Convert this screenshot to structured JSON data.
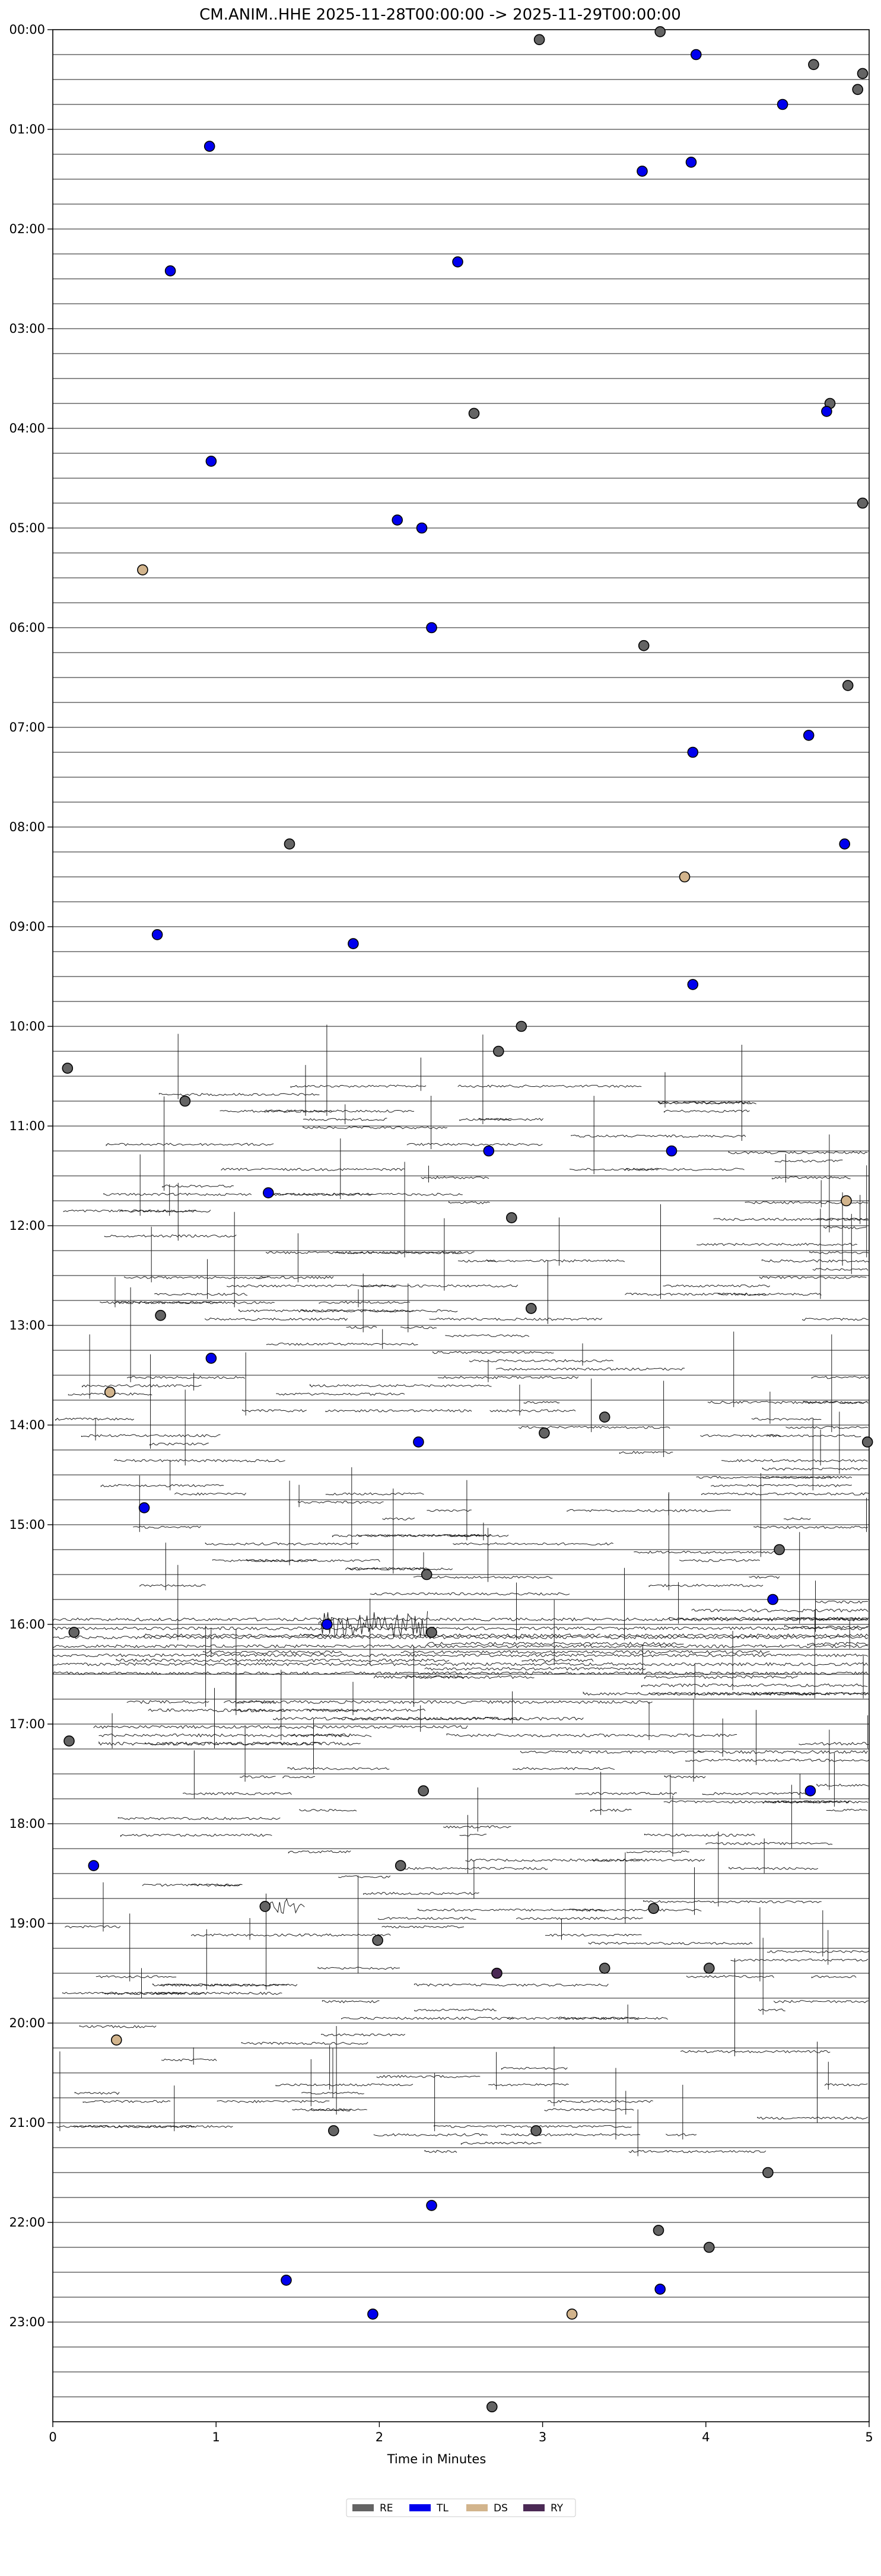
{
  "chart_data": {
    "type": "scatter",
    "title": "CM.ANIM..HHE  2025-11-28T00:00:00 -> 2025-11-29T00:00:00",
    "xlabel": "Time in Minutes",
    "ylabel": "",
    "xlim": [
      0,
      5
    ],
    "ylim_hours": [
      0,
      24
    ],
    "y_axis_inverted": true,
    "grid": false,
    "x_ticks": [
      "0",
      "1",
      "2",
      "3",
      "4",
      "5"
    ],
    "y_ticks": [
      "00:00",
      "01:00",
      "02:00",
      "03:00",
      "04:00",
      "05:00",
      "06:00",
      "07:00",
      "08:00",
      "09:00",
      "10:00",
      "11:00",
      "12:00",
      "13:00",
      "14:00",
      "15:00",
      "16:00",
      "17:00",
      "18:00",
      "19:00",
      "20:00",
      "21:00",
      "22:00",
      "23:00"
    ],
    "legend_position": "bottom-center",
    "legend": [
      {
        "label": "RE",
        "color": "#646464"
      },
      {
        "label": "TL",
        "color": "#0000ee"
      },
      {
        "label": "DS",
        "color": "#d2b48c"
      },
      {
        "label": "RY",
        "color": "#4b2a55"
      }
    ],
    "series": [
      {
        "name": "RE",
        "color": "#646464",
        "points": [
          [
            2.98,
            0.1
          ],
          [
            3.72,
            0.02
          ],
          [
            4.66,
            0.35
          ],
          [
            4.96,
            0.44
          ],
          [
            4.93,
            0.6
          ],
          [
            2.58,
            3.85
          ],
          [
            4.76,
            3.75
          ],
          [
            4.96,
            4.75
          ],
          [
            3.62,
            6.18
          ],
          [
            4.87,
            6.58
          ],
          [
            1.45,
            8.17
          ],
          [
            2.87,
            10.0
          ],
          [
            2.73,
            10.25
          ],
          [
            0.09,
            10.42
          ],
          [
            0.81,
            10.75
          ],
          [
            2.81,
            11.92
          ],
          [
            0.66,
            12.9
          ],
          [
            2.93,
            12.83
          ],
          [
            3.01,
            14.08
          ],
          [
            3.38,
            13.92
          ],
          [
            4.99,
            14.17
          ],
          [
            4.45,
            15.25
          ],
          [
            2.29,
            15.5
          ],
          [
            0.13,
            16.08
          ],
          [
            2.32,
            16.08
          ],
          [
            0.1,
            17.17
          ],
          [
            2.27,
            17.67
          ],
          [
            2.13,
            18.42
          ],
          [
            1.3,
            18.83
          ],
          [
            3.68,
            18.85
          ],
          [
            1.99,
            19.17
          ],
          [
            3.38,
            19.45
          ],
          [
            4.02,
            19.45
          ],
          [
            1.72,
            21.08
          ],
          [
            2.96,
            21.08
          ],
          [
            4.38,
            21.5
          ],
          [
            3.71,
            22.08
          ],
          [
            4.02,
            22.25
          ],
          [
            2.69,
            23.85
          ]
        ]
      },
      {
        "name": "TL",
        "color": "#0000ee",
        "points": [
          [
            3.94,
            0.25
          ],
          [
            4.47,
            0.75
          ],
          [
            0.96,
            1.17
          ],
          [
            3.91,
            1.33
          ],
          [
            3.61,
            1.42
          ],
          [
            0.72,
            2.42
          ],
          [
            2.48,
            2.33
          ],
          [
            4.74,
            3.83
          ],
          [
            0.97,
            4.33
          ],
          [
            2.11,
            4.92
          ],
          [
            2.26,
            5.0
          ],
          [
            2.32,
            6.0
          ],
          [
            4.63,
            7.08
          ],
          [
            3.92,
            7.25
          ],
          [
            4.85,
            8.17
          ],
          [
            0.64,
            9.08
          ],
          [
            1.84,
            9.17
          ],
          [
            3.92,
            9.58
          ],
          [
            1.32,
            11.67
          ],
          [
            2.67,
            11.25
          ],
          [
            3.79,
            11.25
          ],
          [
            0.97,
            13.33
          ],
          [
            2.24,
            14.17
          ],
          [
            0.56,
            14.83
          ],
          [
            4.41,
            15.75
          ],
          [
            1.68,
            16.0
          ],
          [
            4.64,
            17.67
          ],
          [
            0.25,
            18.42
          ],
          [
            2.32,
            21.83
          ],
          [
            1.43,
            22.58
          ],
          [
            1.96,
            22.92
          ],
          [
            3.72,
            22.67
          ]
        ]
      },
      {
        "name": "DS",
        "color": "#d2b48c",
        "points": [
          [
            0.55,
            5.42
          ],
          [
            3.87,
            8.5
          ],
          [
            4.86,
            11.75
          ],
          [
            0.35,
            13.67
          ],
          [
            0.39,
            20.17
          ],
          [
            3.18,
            22.92
          ]
        ]
      },
      {
        "name": "RY",
        "color": "#4b2a55",
        "points": [
          [
            2.72,
            19.5
          ]
        ]
      }
    ]
  }
}
